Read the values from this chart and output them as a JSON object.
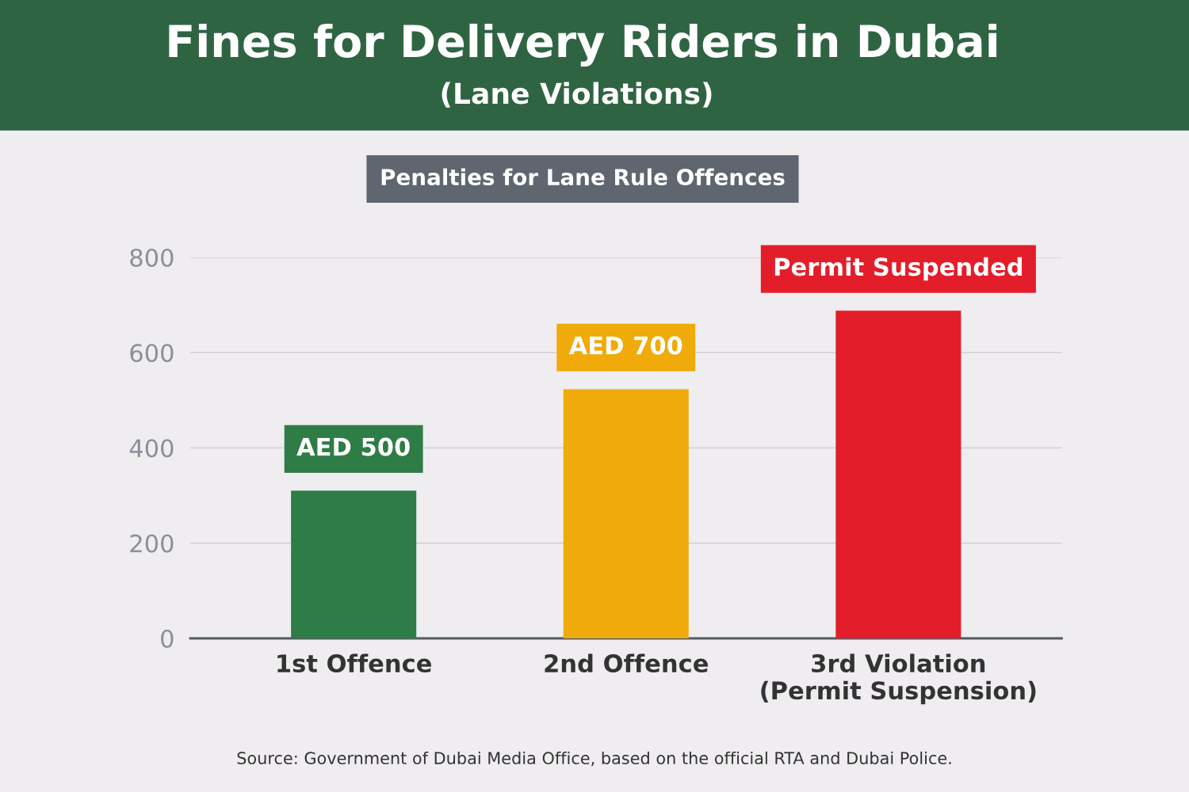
{
  "chart_data": {
    "type": "bar",
    "title": "Fines for Delivery Riders in Dubai",
    "subtitle": "(Lane Violations)",
    "categories": [
      "1st Offence",
      "2nd Offence",
      "3rd Violation\n(Permit Suspension)"
    ],
    "values": [
      310,
      523,
      688
    ],
    "colors": [
      "#2e7d46",
      "#f0aa0a",
      "#e31e2a"
    ],
    "value_labels": [
      "AED 500",
      "AED 700",
      "Permit Suspended"
    ],
    "ylim": [
      0,
      800
    ],
    "yticks": [
      0,
      200,
      400,
      600,
      800
    ],
    "grid": "y",
    "annotations": [
      "Penalties for Lane Rule Offences",
      "Source: Government of Dubai Media Office, based on the official RTA and Dubai Police."
    ]
  }
}
